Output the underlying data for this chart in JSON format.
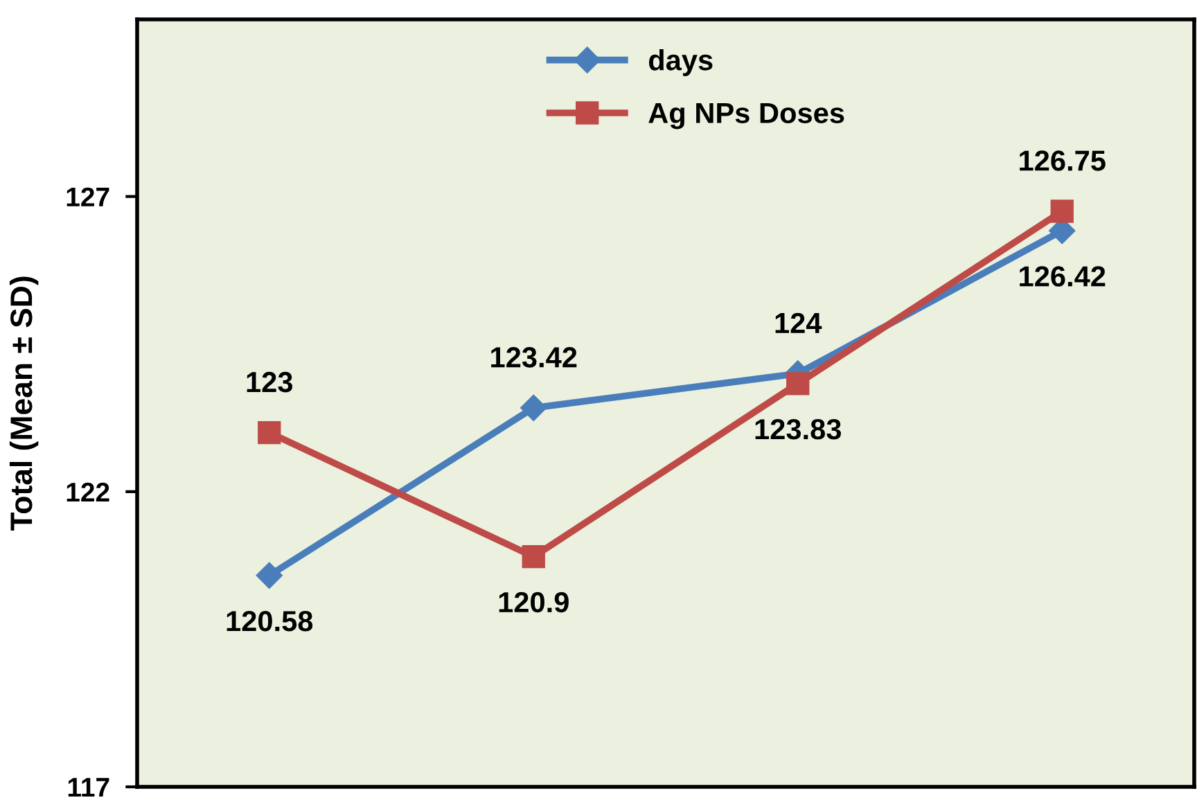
{
  "chart_data": {
    "type": "line",
    "ylabel": "Total (Mean ± SD)",
    "categories": [
      null,
      null,
      null,
      null
    ],
    "series": [
      {
        "name": "days",
        "color": "#4a7ebb",
        "marker": "diamond",
        "values": [
          120.58,
          123.42,
          124,
          126.42
        ]
      },
      {
        "name": "Ag NPs Doses",
        "color": "#be4b48",
        "marker": "square",
        "values": [
          123,
          120.9,
          123.83,
          126.75
        ]
      }
    ],
    "ylim": [
      117,
      130
    ],
    "yticks": [
      117,
      122,
      127
    ],
    "data_labels": true,
    "legend": "top",
    "grid": false
  }
}
